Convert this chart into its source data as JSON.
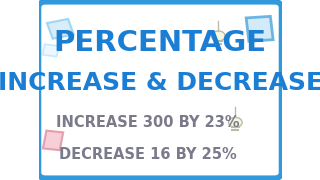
{
  "bg_color": "#ffffff",
  "border_color": "#3399dd",
  "title_line1": "PERCENTAGE",
  "title_line2": "INCREASE & DECREASE",
  "title_color": "#1a7fd4",
  "sub_line1": "INCREASE 300 BY 23%",
  "sub_line2": "DECREASE 16 BY 25%",
  "sub_color": "#7a7a8a",
  "fig_width": 3.2,
  "fig_height": 1.8,
  "dpi": 100
}
